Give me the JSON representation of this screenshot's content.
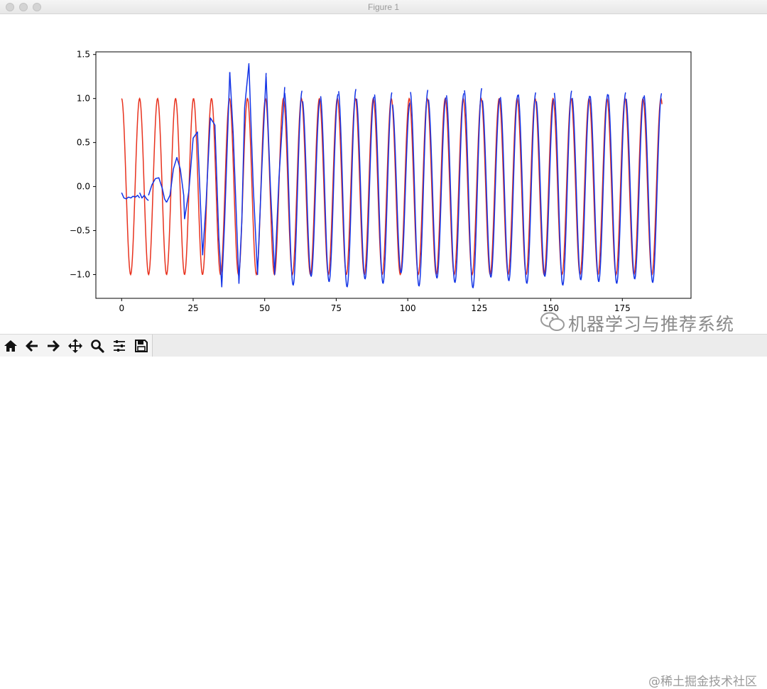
{
  "window": {
    "title": "Figure 1"
  },
  "toolbar": {
    "buttons": [
      {
        "icon": "home-icon",
        "tooltip": "Home"
      },
      {
        "icon": "arrow-left-icon",
        "tooltip": "Back"
      },
      {
        "icon": "arrow-right-icon",
        "tooltip": "Forward"
      },
      {
        "icon": "move-icon",
        "tooltip": "Pan"
      },
      {
        "icon": "magnifier-icon",
        "tooltip": "Zoom"
      },
      {
        "icon": "sliders-icon",
        "tooltip": "Configure subplots"
      },
      {
        "icon": "save-icon",
        "tooltip": "Save"
      }
    ]
  },
  "watermark": {
    "main": "机器学习与推荐系统",
    "sub": "@稀土掘金技术社区"
  },
  "colors": {
    "series_red": "#e8321e",
    "series_blue": "#1233e6",
    "frame": "#000000"
  },
  "chart_data": {
    "type": "line",
    "title": "",
    "xlabel": "",
    "ylabel": "",
    "xlim": [
      -9,
      199
    ],
    "ylim": [
      -1.27,
      1.53
    ],
    "xticks": [
      0,
      25,
      50,
      75,
      100,
      125,
      150,
      175
    ],
    "yticks": [
      -1.0,
      -0.5,
      0.0,
      0.5,
      1.0,
      1.5
    ],
    "xtick_labels": [
      "0",
      "25",
      "50",
      "75",
      "100",
      "125",
      "150",
      "175"
    ],
    "ytick_labels": [
      "−1.0",
      "−0.5",
      "0.0",
      "0.5",
      "1.0",
      "1.5"
    ],
    "grid": false,
    "series": [
      {
        "color": "#e8321e",
        "description": "cosine wave, amplitude 1, period about 6.3, x from 0 to 189",
        "function": "cos",
        "amplitude": 1.0,
        "period": 6.283,
        "x_range": [
          0,
          189
        ]
      },
      {
        "color": "#1233e6",
        "description": "predicted wave, drawn in disconnected segments of about 6.3 each",
        "segments": [
          {
            "x": [
              0.0,
              0.8,
              1.6,
              2.4,
              3.2,
              4.0,
              4.8,
              5.6,
              6.3
            ],
            "y": [
              -0.07,
              -0.13,
              -0.14,
              -0.12,
              -0.13,
              -0.11,
              -0.12,
              -0.1,
              -0.13
            ]
          },
          {
            "x": [
              6.3,
              7.1,
              7.9,
              8.7,
              9.4
            ],
            "y": [
              -0.07,
              -0.13,
              -0.1,
              -0.14,
              -0.16
            ]
          },
          {
            "x": [
              9.4,
              10.6,
              11.8,
              13.0,
              14.2,
              15.0,
              15.7
            ],
            "y": [
              -0.1,
              0.02,
              0.09,
              0.1,
              -0.02,
              -0.14,
              -0.18
            ]
          },
          {
            "x": [
              15.7,
              16.9,
              18.1,
              19.3,
              20.5,
              21.7,
              22.0
            ],
            "y": [
              -0.18,
              -0.1,
              0.2,
              0.33,
              0.2,
              -0.1,
              -0.37
            ]
          },
          {
            "x": [
              22.0,
              23.5,
              25.0,
              26.5,
              28.3
            ],
            "y": [
              -0.37,
              -0.05,
              0.55,
              0.62,
              -0.78
            ]
          },
          {
            "x": [
              28.3,
              29.5,
              31.0,
              32.6
            ],
            "y": [
              -0.78,
              -0.2,
              0.78,
              0.7
            ]
          },
          {
            "x": [
              32.6,
              34.0,
              35.0,
              36.0,
              37.8
            ],
            "y": [
              0.7,
              -0.6,
              -1.14,
              -0.4,
              1.3
            ]
          },
          {
            "x": [
              37.8,
              39.0,
              41.0,
              42.0,
              43.0,
              44.5
            ],
            "y": [
              1.3,
              0.6,
              -1.1,
              -0.4,
              0.9,
              1.4
            ]
          },
          {
            "x": [
              44.5,
              46.0,
              47.5,
              49.0,
              50.5
            ],
            "y": [
              1.38,
              0.0,
              -1.0,
              0.2,
              1.29
            ]
          },
          {
            "x": [
              50.5,
              52.0,
              53.5,
              55.0,
              57.0
            ],
            "y": [
              1.25,
              0.0,
              -1.0,
              0.1,
              1.13
            ]
          }
        ],
        "dense_tail": {
          "x_range": [
            57,
            189
          ],
          "amplitude": [
            1.0,
            1.15
          ],
          "period": 6.283,
          "phase_lag": 0.25
        }
      }
    ]
  }
}
